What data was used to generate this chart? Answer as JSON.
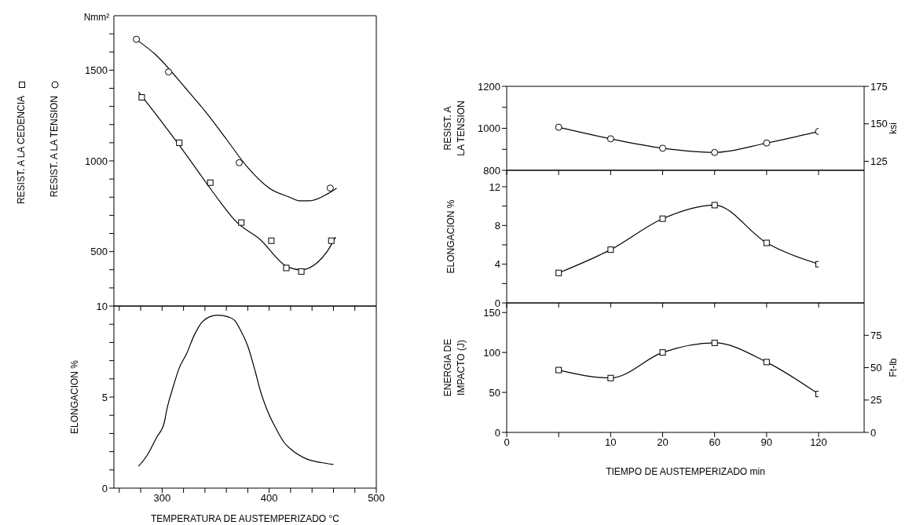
{
  "chart_data": [
    {
      "type": "line",
      "ylabel": "Nmm²",
      "legend": "left",
      "tick_labels": "y",
      "xlim": [
        255,
        500
      ],
      "xticks": [
        260,
        280,
        300,
        320,
        340,
        360,
        380,
        400,
        420,
        440,
        460,
        480
      ],
      "ylim": [
        200,
        1800
      ],
      "yticks": [
        {
          "value": 300,
          "label": null
        },
        {
          "value": 400,
          "label": null
        },
        500,
        {
          "value": 600,
          "label": null
        },
        {
          "value": 700,
          "label": null
        },
        {
          "value": 800,
          "label": null
        },
        {
          "value": 900,
          "label": null
        },
        1000,
        {
          "value": 1100,
          "label": null
        },
        {
          "value": 1200,
          "label": null
        },
        {
          "value": 1300,
          "label": null
        },
        {
          "value": 1400,
          "label": null
        },
        1500,
        {
          "value": 1600,
          "label": null
        },
        {
          "value": 1700,
          "label": null
        }
      ],
      "series": [
        {
          "name": "RESIST. A LA CEDENCIA",
          "type": "scatter",
          "marker": "square",
          "color": "#000000",
          "x": [
            281,
            316,
            345,
            374,
            402,
            416,
            430,
            458
          ],
          "values": [
            1350,
            1100,
            880,
            660,
            560,
            410,
            390,
            560
          ]
        },
        {
          "name": "RESIST. A LA TENSION",
          "type": "scatter",
          "marker": "circle",
          "color": "#000000",
          "x": [
            276,
            306,
            372,
            457
          ],
          "values": [
            1670,
            1490,
            990,
            850
          ]
        },
        {
          "type": "line",
          "marker": "none",
          "color": "#000000",
          "x": [
            278,
            299,
            323,
            346,
            370,
            391,
            416,
            430,
            445,
            454,
            462
          ],
          "values": [
            1380,
            1220,
            1030,
            840,
            660,
            570,
            420,
            400,
            440,
            500,
            580
          ]
        },
        {
          "type": "line",
          "marker": "none",
          "color": "#000000",
          "x": [
            278,
            293,
            322,
            342,
            360,
            379,
            400,
            419,
            428,
            438,
            455,
            463
          ],
          "values": [
            1660,
            1590,
            1400,
            1260,
            1120,
            970,
            850,
            800,
            780,
            780,
            820,
            850
          ]
        }
      ]
    },
    {
      "type": "line",
      "xlabel": "TEMPERATURA DE AUSTEMPERIZADO °C",
      "ylabel": "ELONGACION %",
      "xlim": [
        255,
        500
      ],
      "xticks": [
        {
          "value": 260,
          "label": null
        },
        {
          "value": 280,
          "label": null
        },
        300,
        {
          "value": 320,
          "label": null
        },
        {
          "value": 340,
          "label": null
        },
        {
          "value": 360,
          "label": null
        },
        {
          "value": 380,
          "label": null
        },
        400,
        {
          "value": 420,
          "label": null
        },
        {
          "value": 440,
          "label": null
        },
        {
          "value": 460,
          "label": null
        },
        {
          "value": 480,
          "label": null
        },
        500
      ],
      "ylim": [
        0,
        10
      ],
      "yticks": [
        0,
        {
          "value": 1,
          "label": null
        },
        {
          "value": 2,
          "label": null
        },
        {
          "value": 3,
          "label": null
        },
        {
          "value": 4,
          "label": null
        },
        5,
        {
          "value": 6,
          "label": null
        },
        {
          "value": 7,
          "label": null
        },
        {
          "value": 8,
          "label": null
        },
        {
          "value": 9,
          "label": null
        },
        10
      ],
      "series": [
        {
          "marker": "none",
          "color": "#000000",
          "x": [
            278,
            286,
            295,
            302,
            304,
            306,
            309,
            316,
            323,
            330,
            337,
            344,
            352,
            362,
            368,
            373,
            380,
            387,
            392,
            398,
            407,
            414,
            421,
            435,
            449,
            460
          ],
          "values": [
            1.2,
            1.8,
            2.8,
            3.6,
            4.2,
            4.7,
            5.3,
            6.6,
            7.4,
            8.4,
            9.1,
            9.4,
            9.5,
            9.4,
            9.2,
            8.7,
            7.8,
            6.4,
            5.3,
            4.3,
            3.2,
            2.5,
            2.1,
            1.6,
            1.4,
            1.3
          ]
        }
      ]
    },
    {
      "type": "line",
      "ylabel": "RESIST. A LA TENSION",
      "y2label": "ksi",
      "tick_labels": "y",
      "categories": [
        "0",
        null,
        "10",
        "20",
        "60",
        "90",
        "120"
      ],
      "ylim": [
        800,
        1200
      ],
      "yticks": [
        800,
        {
          "value": 900,
          "label": null
        },
        1000,
        {
          "value": 1100,
          "label": null
        },
        1200
      ],
      "y2lim": [
        119,
        175
      ],
      "y2ticks": [
        125,
        150,
        175
      ],
      "series": [
        {
          "marker": "circle",
          "color": "#000000",
          "values": [
            null,
            1005,
            950,
            905,
            885,
            930,
            985
          ]
        }
      ]
    },
    {
      "type": "line",
      "ylabel": "ELONGACION %",
      "tick_labels": "y",
      "categories": [
        "0",
        null,
        "10",
        "20",
        "60",
        "90",
        "120"
      ],
      "ylim": [
        0,
        13.7
      ],
      "yticks": [
        0,
        {
          "value": 2,
          "label": null
        },
        4,
        {
          "value": 6,
          "label": null
        },
        8,
        {
          "value": 10,
          "label": null
        },
        12
      ],
      "series": [
        {
          "marker": "square",
          "color": "#000000",
          "values": [
            null,
            3.1,
            5.5,
            8.7,
            10.1,
            6.2,
            4.0
          ]
        }
      ]
    },
    {
      "type": "line",
      "xlabel": "TIEMPO DE AUSTEMPERIZADO min",
      "ylabel": "ENERGIA DE IMPACTO (J)",
      "y2label": "Ft-lb",
      "categories": [
        "0",
        null,
        "10",
        "20",
        "60",
        "90",
        "120"
      ],
      "ylim": [
        0,
        162
      ],
      "yticks": [
        0,
        50,
        100,
        150
      ],
      "y2lim": [
        0,
        100
      ],
      "y2ticks": [
        0,
        25,
        50,
        75
      ],
      "series": [
        {
          "marker": "square",
          "color": "#000000",
          "values": [
            null,
            78,
            68,
            100,
            112,
            88,
            48
          ]
        }
      ]
    }
  ]
}
